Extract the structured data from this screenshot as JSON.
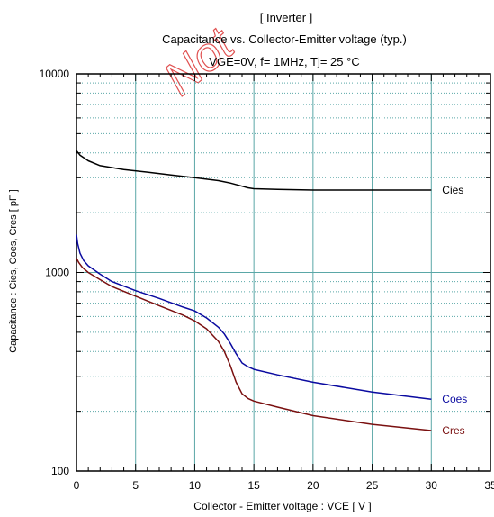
{
  "chart_data": {
    "type": "line",
    "watermark": "Not",
    "title_line1": "[ Inverter ]",
    "title_line2": "Capacitance  vs.  Collector-Emitter voltage  (typ.)",
    "title_line3": "VGE=0V,  f= 1MHz,  Tj= 25 °C",
    "xlabel": "Collector - Emitter voltage  :  VCE  [ V ]",
    "ylabel": "Capacitance  :  Cies, Coes, Cres  [ pF ]",
    "x_scale": "linear",
    "y_scale": "log",
    "xlim": [
      0,
      35
    ],
    "ylim": [
      100,
      10000
    ],
    "x_ticks": [
      0,
      5,
      10,
      15,
      20,
      25,
      30,
      35
    ],
    "x_tick_labels": [
      "0",
      "5",
      "10",
      "15",
      "20",
      "25",
      "30",
      "35"
    ],
    "y_ticks": [
      100,
      1000,
      10000
    ],
    "y_tick_labels": [
      "100",
      "1000",
      "10000"
    ],
    "grid": true,
    "colors": {
      "grid": "#5aa7a7",
      "frame": "#000000"
    },
    "series": [
      {
        "name": "Cies",
        "color": "#000000",
        "x": [
          0,
          0.3,
          1,
          2,
          4,
          6,
          8,
          10,
          12,
          13,
          14,
          14.5,
          15,
          17,
          20,
          25,
          30
        ],
        "y": [
          4100,
          3900,
          3650,
          3450,
          3300,
          3200,
          3100,
          3000,
          2900,
          2820,
          2720,
          2670,
          2640,
          2620,
          2600,
          2600,
          2600
        ]
      },
      {
        "name": "Coes",
        "color": "#0a0aa0",
        "x": [
          0,
          0.1,
          0.3,
          0.6,
          1,
          2,
          3,
          5,
          7,
          9,
          10,
          11,
          12,
          12.5,
          13,
          13.5,
          14,
          14.5,
          15,
          17,
          20,
          25,
          30
        ],
        "y": [
          1550,
          1400,
          1250,
          1150,
          1080,
          980,
          900,
          810,
          740,
          670,
          640,
          590,
          530,
          490,
          440,
          390,
          350,
          335,
          325,
          305,
          280,
          250,
          230
        ]
      },
      {
        "name": "Cres",
        "color": "#7a1010",
        "x": [
          0,
          0.2,
          0.5,
          1,
          2,
          3,
          5,
          7,
          9,
          10,
          11,
          12,
          12.5,
          13,
          13.5,
          14,
          14.5,
          15,
          17,
          20,
          25,
          30
        ],
        "y": [
          1180,
          1120,
          1060,
          1000,
          920,
          850,
          760,
          680,
          610,
          570,
          520,
          450,
          400,
          340,
          280,
          245,
          232,
          225,
          210,
          190,
          172,
          160
        ]
      }
    ]
  }
}
